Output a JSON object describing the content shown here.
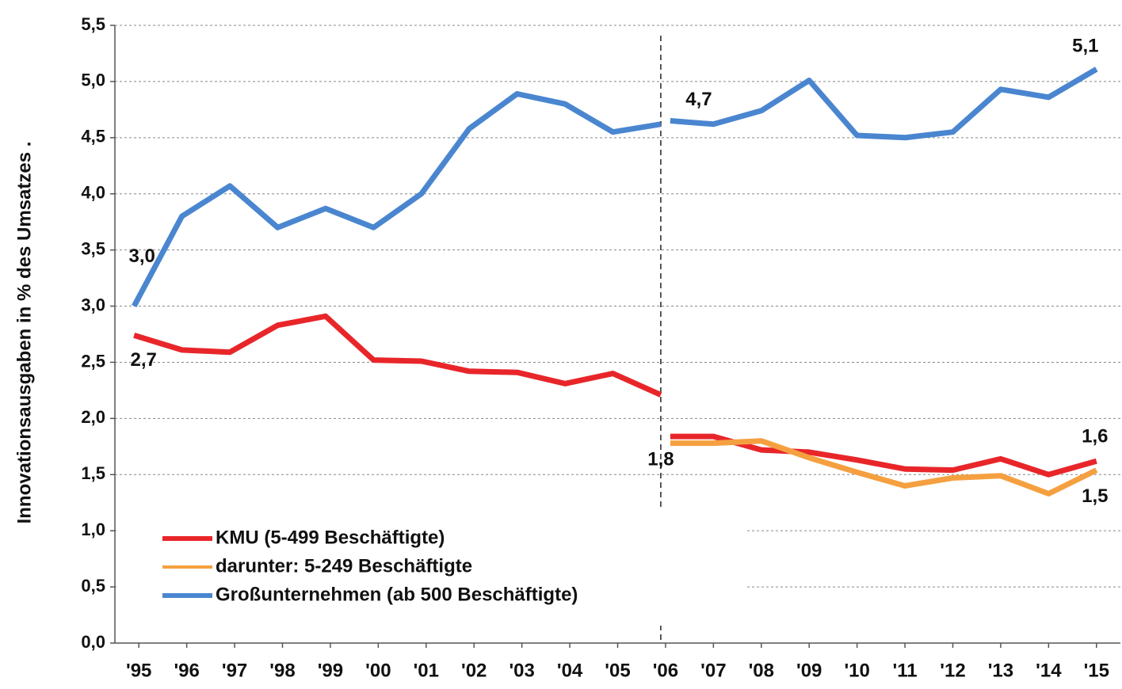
{
  "chart_data": {
    "type": "line",
    "y_label": "Innovationsausgaben in % des Umsatzes .",
    "x": [
      1995,
      1996,
      1997,
      1998,
      1999,
      2000,
      2001,
      2002,
      2003,
      2004,
      2005,
      2006,
      2006,
      2007,
      2008,
      2009,
      2010,
      2011,
      2012,
      2013,
      2014,
      2015
    ],
    "xlim": [
      1994.5,
      2015.5
    ],
    "xticks": [
      {
        "value": 1995,
        "label": "'95"
      },
      {
        "value": 1996,
        "label": "'96"
      },
      {
        "value": 1997,
        "label": "'97"
      },
      {
        "value": 1998,
        "label": "'98"
      },
      {
        "value": 1999,
        "label": "'99"
      },
      {
        "value": 2000,
        "label": "'00"
      },
      {
        "value": 2001,
        "label": "'01"
      },
      {
        "value": 2002,
        "label": "'02"
      },
      {
        "value": 2003,
        "label": "'03"
      },
      {
        "value": 2004,
        "label": "'04"
      },
      {
        "value": 2005,
        "label": "'05"
      },
      {
        "value": 2006,
        "label": "'06"
      },
      {
        "value": 2007,
        "label": "'07"
      },
      {
        "value": 2008,
        "label": "'08"
      },
      {
        "value": 2009,
        "label": "'09"
      },
      {
        "value": 2010,
        "label": "'10"
      },
      {
        "value": 2011,
        "label": "'11"
      },
      {
        "value": 2012,
        "label": "'12"
      },
      {
        "value": 2013,
        "label": "'13"
      },
      {
        "value": 2014,
        "label": "'14"
      },
      {
        "value": 2015,
        "label": "'15"
      }
    ],
    "ylim": [
      0,
      5.5
    ],
    "yticks": [
      {
        "value": 0,
        "label": "0,0"
      },
      {
        "value": 0.5,
        "label": "0,5"
      },
      {
        "value": 1,
        "label": "1,0"
      },
      {
        "value": 1.5,
        "label": "1,5"
      },
      {
        "value": 2,
        "label": "2,0"
      },
      {
        "value": 2.5,
        "label": "2,5"
      },
      {
        "value": 3,
        "label": "3,0"
      },
      {
        "value": 3.5,
        "label": "3,5"
      },
      {
        "value": 4,
        "label": "4,0"
      },
      {
        "value": 4.5,
        "label": "4,5"
      },
      {
        "value": 5,
        "label": "5,0"
      },
      {
        "value": 5.5,
        "label": "5,5"
      }
    ],
    "grid": true,
    "break_x": 2006,
    "legend": "lower left",
    "series": [
      {
        "name": "KMU (5-499 Beschäftigte)",
        "color": "#e8262a",
        "values": [
          2.74,
          2.61,
          2.59,
          2.83,
          2.91,
          2.52,
          2.51,
          2.42,
          2.41,
          2.31,
          2.4,
          2.21,
          1.84,
          1.84,
          1.72,
          1.7,
          1.63,
          1.55,
          1.54,
          1.64,
          1.5,
          1.62
        ],
        "value_labels": [
          "2,7",
          null,
          null,
          null,
          null,
          null,
          null,
          null,
          null,
          null,
          null,
          null,
          "1,8",
          null,
          null,
          null,
          null,
          null,
          null,
          null,
          null,
          "1,6"
        ]
      },
      {
        "name": "darunter: 5-249 Beschäftigte",
        "color": "#f5a040",
        "values": [
          null,
          null,
          null,
          null,
          null,
          null,
          null,
          null,
          null,
          null,
          null,
          null,
          1.78,
          1.78,
          1.8,
          1.65,
          1.52,
          1.4,
          1.47,
          1.49,
          1.33,
          1.54
        ],
        "value_labels": [
          null,
          null,
          null,
          null,
          null,
          null,
          null,
          null,
          null,
          null,
          null,
          null,
          null,
          null,
          null,
          null,
          null,
          null,
          null,
          null,
          null,
          "1,5"
        ]
      },
      {
        "name": "Großunternehmen (ab 500 Beschäftigte)",
        "color": "#4a86d0",
        "values": [
          3.0,
          3.8,
          4.07,
          3.7,
          3.87,
          3.7,
          4.0,
          4.58,
          4.89,
          4.8,
          4.55,
          4.62,
          4.65,
          4.62,
          4.74,
          5.01,
          4.52,
          4.5,
          4.55,
          4.93,
          4.86,
          5.11
        ],
        "value_labels": [
          "3,0",
          null,
          null,
          null,
          null,
          null,
          null,
          null,
          null,
          null,
          null,
          null,
          "4,7",
          null,
          null,
          null,
          null,
          null,
          null,
          null,
          null,
          "5,1"
        ]
      }
    ]
  }
}
